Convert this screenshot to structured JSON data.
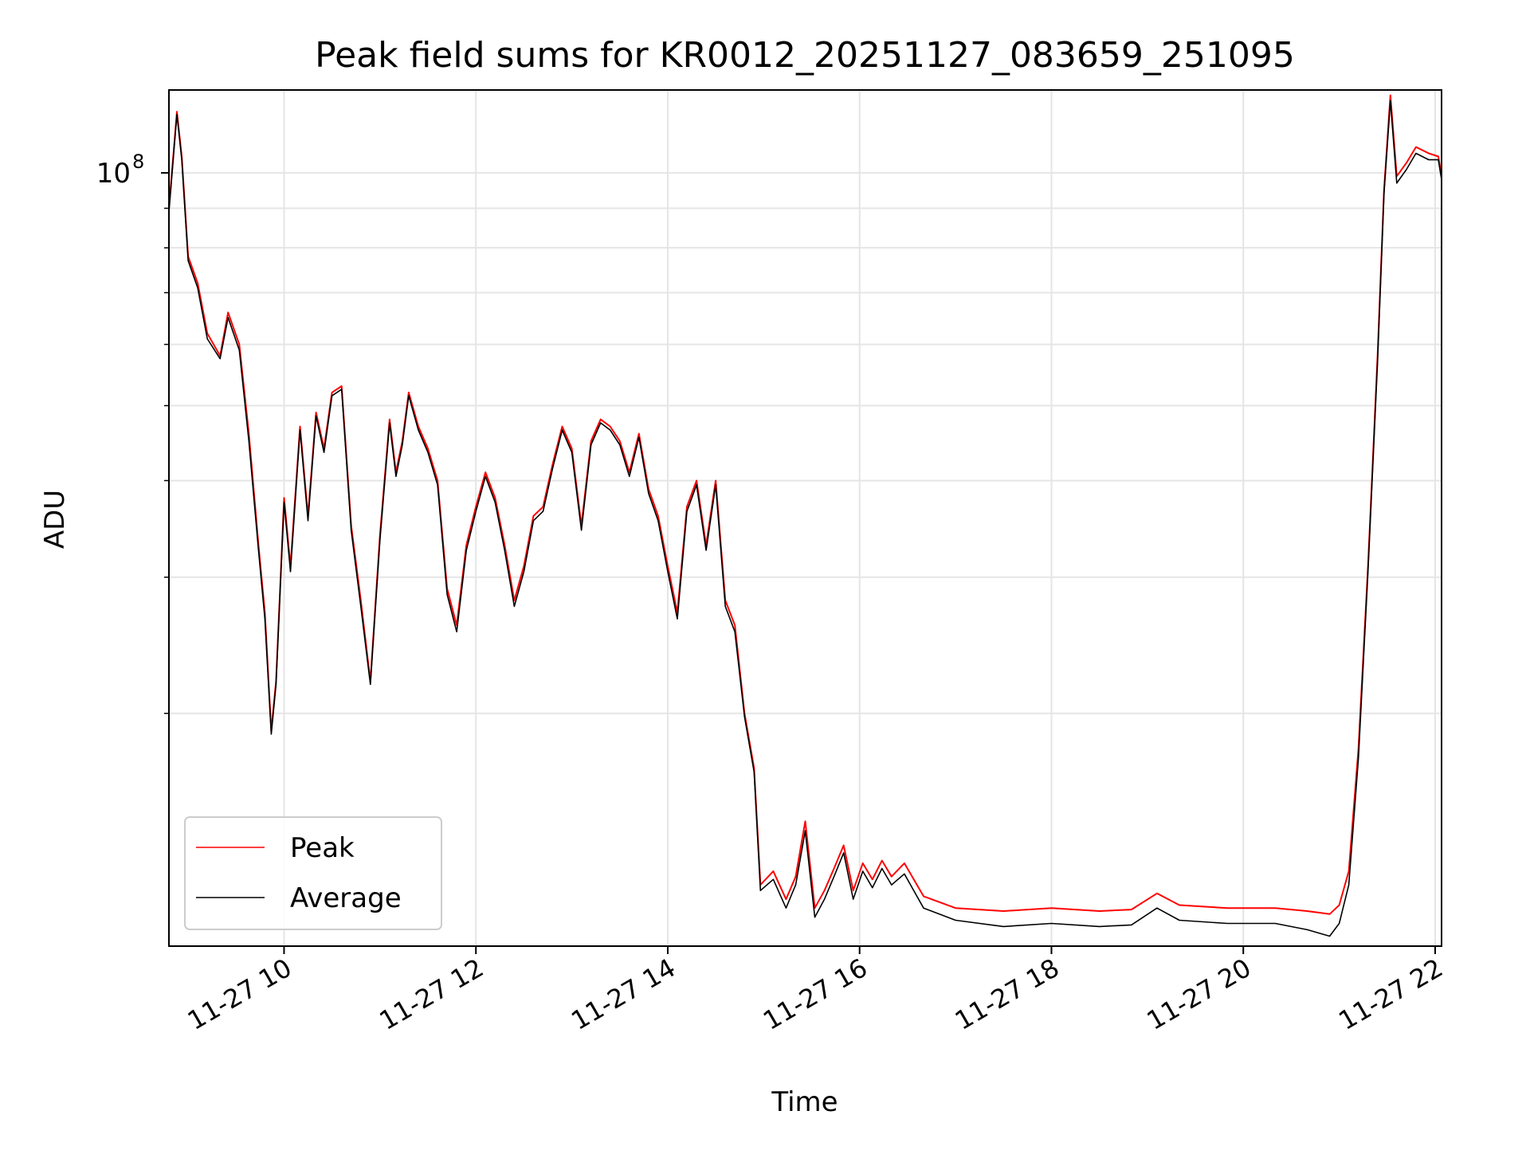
{
  "chart_data": {
    "type": "line",
    "title": "Peak field sums for KR0012_20251127_083659_251095",
    "xlabel": "Time",
    "ylabel": "ADU",
    "x_type": "datetime",
    "xlim": [
      "2025-11-27 08:48",
      "2025-11-27 22:04"
    ],
    "ylim": [
      10000000,
      128000000
    ],
    "yscale": "log",
    "grid": true,
    "legend_position": "lower-left",
    "x_ticks": [
      {
        "value": "2025-11-27 10:00",
        "label": "11-27 10"
      },
      {
        "value": "2025-11-27 12:00",
        "label": "11-27 12"
      },
      {
        "value": "2025-11-27 14:00",
        "label": "11-27 14"
      },
      {
        "value": "2025-11-27 16:00",
        "label": "11-27 16"
      },
      {
        "value": "2025-11-27 18:00",
        "label": "11-27 18"
      },
      {
        "value": "2025-11-27 20:00",
        "label": "11-27 20"
      },
      {
        "value": "2025-11-27 22:00",
        "label": "11-27 22"
      }
    ],
    "y_ticks_major": [
      {
        "value": 100000000,
        "label": "10",
        "exponent": "8"
      }
    ],
    "y_ticks_minor": [
      20000000,
      30000000,
      40000000,
      50000000,
      60000000,
      70000000,
      80000000,
      90000000
    ],
    "series": [
      {
        "name": "Peak",
        "color": "#ff0000",
        "points": [
          [
            "2025-11-27 08:48",
            90000000
          ],
          [
            "2025-11-27 08:53",
            120000000
          ],
          [
            "2025-11-27 08:56",
            105000000
          ],
          [
            "2025-11-27 09:00",
            78000000
          ],
          [
            "2025-11-27 09:06",
            72000000
          ],
          [
            "2025-11-27 09:12",
            62000000
          ],
          [
            "2025-11-27 09:20",
            58000000
          ],
          [
            "2025-11-27 09:25",
            66000000
          ],
          [
            "2025-11-27 09:32",
            60000000
          ],
          [
            "2025-11-27 09:38",
            46000000
          ],
          [
            "2025-11-27 09:44",
            33000000
          ],
          [
            "2025-11-27 09:48",
            27000000
          ],
          [
            "2025-11-27 09:52",
            19000000
          ],
          [
            "2025-11-27 09:55",
            22000000
          ],
          [
            "2025-11-27 10:00",
            38000000
          ],
          [
            "2025-11-27 10:04",
            31000000
          ],
          [
            "2025-11-27 10:10",
            47000000
          ],
          [
            "2025-11-27 10:15",
            36000000
          ],
          [
            "2025-11-27 10:20",
            49000000
          ],
          [
            "2025-11-27 10:25",
            44000000
          ],
          [
            "2025-11-27 10:30",
            52000000
          ],
          [
            "2025-11-27 10:36",
            53000000
          ],
          [
            "2025-11-27 10:42",
            35000000
          ],
          [
            "2025-11-27 10:48",
            28000000
          ],
          [
            "2025-11-27 10:54",
            22000000
          ],
          [
            "2025-11-27 11:00",
            34000000
          ],
          [
            "2025-11-27 11:06",
            48000000
          ],
          [
            "2025-11-27 11:10",
            41000000
          ],
          [
            "2025-11-27 11:14",
            45000000
          ],
          [
            "2025-11-27 11:18",
            52000000
          ],
          [
            "2025-11-27 11:24",
            47000000
          ],
          [
            "2025-11-27 11:30",
            44000000
          ],
          [
            "2025-11-27 11:36",
            40000000
          ],
          [
            "2025-11-27 11:42",
            29000000
          ],
          [
            "2025-11-27 11:48",
            26000000
          ],
          [
            "2025-11-27 11:54",
            33000000
          ],
          [
            "2025-11-27 12:00",
            37000000
          ],
          [
            "2025-11-27 12:06",
            41000000
          ],
          [
            "2025-11-27 12:12",
            38000000
          ],
          [
            "2025-11-27 12:18",
            33000000
          ],
          [
            "2025-11-27 12:24",
            28000000
          ],
          [
            "2025-11-27 12:30",
            31000000
          ],
          [
            "2025-11-27 12:36",
            36000000
          ],
          [
            "2025-11-27 12:42",
            37000000
          ],
          [
            "2025-11-27 12:48",
            42000000
          ],
          [
            "2025-11-27 12:54",
            47000000
          ],
          [
            "2025-11-27 13:00",
            44000000
          ],
          [
            "2025-11-27 13:06",
            35000000
          ],
          [
            "2025-11-27 13:12",
            45000000
          ],
          [
            "2025-11-27 13:18",
            48000000
          ],
          [
            "2025-11-27 13:24",
            47000000
          ],
          [
            "2025-11-27 13:30",
            45000000
          ],
          [
            "2025-11-27 13:36",
            41000000
          ],
          [
            "2025-11-27 13:42",
            46000000
          ],
          [
            "2025-11-27 13:48",
            39000000
          ],
          [
            "2025-11-27 13:54",
            36000000
          ],
          [
            "2025-11-27 14:00",
            31000000
          ],
          [
            "2025-11-27 14:06",
            27000000
          ],
          [
            "2025-11-27 14:12",
            37000000
          ],
          [
            "2025-11-27 14:18",
            40000000
          ],
          [
            "2025-11-27 14:24",
            33000000
          ],
          [
            "2025-11-27 14:30",
            40000000
          ],
          [
            "2025-11-27 14:36",
            28000000
          ],
          [
            "2025-11-27 14:42",
            26000000
          ],
          [
            "2025-11-27 14:48",
            20000000
          ],
          [
            "2025-11-27 14:54",
            17000000
          ],
          [
            "2025-11-27 14:58",
            12000000
          ],
          [
            "2025-11-27 15:06",
            12500000
          ],
          [
            "2025-11-27 15:14",
            11500000
          ],
          [
            "2025-11-27 15:20",
            12300000
          ],
          [
            "2025-11-27 15:26",
            14500000
          ],
          [
            "2025-11-27 15:32",
            11200000
          ],
          [
            "2025-11-27 15:38",
            11800000
          ],
          [
            "2025-11-27 15:44",
            12600000
          ],
          [
            "2025-11-27 15:50",
            13500000
          ],
          [
            "2025-11-27 15:56",
            11800000
          ],
          [
            "2025-11-27 16:02",
            12800000
          ],
          [
            "2025-11-27 16:08",
            12200000
          ],
          [
            "2025-11-27 16:14",
            12900000
          ],
          [
            "2025-11-27 16:20",
            12300000
          ],
          [
            "2025-11-27 16:28",
            12800000
          ],
          [
            "2025-11-27 16:40",
            11600000
          ],
          [
            "2025-11-27 17:00",
            11200000
          ],
          [
            "2025-11-27 17:30",
            11100000
          ],
          [
            "2025-11-27 18:00",
            11200000
          ],
          [
            "2025-11-27 18:30",
            11100000
          ],
          [
            "2025-11-27 18:50",
            11150000
          ],
          [
            "2025-11-27 19:06",
            11700000
          ],
          [
            "2025-11-27 19:20",
            11300000
          ],
          [
            "2025-11-27 19:50",
            11200000
          ],
          [
            "2025-11-27 20:20",
            11200000
          ],
          [
            "2025-11-27 20:40",
            11100000
          ],
          [
            "2025-11-27 20:54",
            11000000
          ],
          [
            "2025-11-27 21:00",
            11300000
          ],
          [
            "2025-11-27 21:06",
            12500000
          ],
          [
            "2025-11-27 21:12",
            18000000
          ],
          [
            "2025-11-27 21:18",
            31000000
          ],
          [
            "2025-11-27 21:24",
            58000000
          ],
          [
            "2025-11-27 21:28",
            95000000
          ],
          [
            "2025-11-27 21:32",
            126000000
          ],
          [
            "2025-11-27 21:36",
            99000000
          ],
          [
            "2025-11-27 21:42",
            103000000
          ],
          [
            "2025-11-27 21:48",
            108000000
          ],
          [
            "2025-11-27 21:56",
            106000000
          ],
          [
            "2025-11-27 22:02",
            105000000
          ],
          [
            "2025-11-27 22:04",
            99000000
          ]
        ]
      },
      {
        "name": "Average",
        "color": "#000000",
        "points": [
          [
            "2025-11-27 08:48",
            89000000
          ],
          [
            "2025-11-27 08:53",
            119000000
          ],
          [
            "2025-11-27 08:56",
            104000000
          ],
          [
            "2025-11-27 09:00",
            77000000
          ],
          [
            "2025-11-27 09:06",
            71000000
          ],
          [
            "2025-11-27 09:12",
            61000000
          ],
          [
            "2025-11-27 09:20",
            57500000
          ],
          [
            "2025-11-27 09:25",
            65000000
          ],
          [
            "2025-11-27 09:32",
            59000000
          ],
          [
            "2025-11-27 09:38",
            45000000
          ],
          [
            "2025-11-27 09:44",
            32500000
          ],
          [
            "2025-11-27 09:48",
            26500000
          ],
          [
            "2025-11-27 09:52",
            18800000
          ],
          [
            "2025-11-27 09:55",
            21800000
          ],
          [
            "2025-11-27 10:00",
            37500000
          ],
          [
            "2025-11-27 10:04",
            30500000
          ],
          [
            "2025-11-27 10:10",
            46500000
          ],
          [
            "2025-11-27 10:15",
            35500000
          ],
          [
            "2025-11-27 10:20",
            48500000
          ],
          [
            "2025-11-27 10:25",
            43500000
          ],
          [
            "2025-11-27 10:30",
            51500000
          ],
          [
            "2025-11-27 10:36",
            52500000
          ],
          [
            "2025-11-27 10:42",
            34500000
          ],
          [
            "2025-11-27 10:48",
            27500000
          ],
          [
            "2025-11-27 10:54",
            21800000
          ],
          [
            "2025-11-27 11:00",
            33500000
          ],
          [
            "2025-11-27 11:06",
            47500000
          ],
          [
            "2025-11-27 11:10",
            40500000
          ],
          [
            "2025-11-27 11:14",
            44500000
          ],
          [
            "2025-11-27 11:18",
            51500000
          ],
          [
            "2025-11-27 11:24",
            46500000
          ],
          [
            "2025-11-27 11:30",
            43500000
          ],
          [
            "2025-11-27 11:36",
            39500000
          ],
          [
            "2025-11-27 11:42",
            28500000
          ],
          [
            "2025-11-27 11:48",
            25500000
          ],
          [
            "2025-11-27 11:54",
            32500000
          ],
          [
            "2025-11-27 12:00",
            36500000
          ],
          [
            "2025-11-27 12:06",
            40500000
          ],
          [
            "2025-11-27 12:12",
            37500000
          ],
          [
            "2025-11-27 12:18",
            32500000
          ],
          [
            "2025-11-27 12:24",
            27500000
          ],
          [
            "2025-11-27 12:30",
            30500000
          ],
          [
            "2025-11-27 12:36",
            35500000
          ],
          [
            "2025-11-27 12:42",
            36500000
          ],
          [
            "2025-11-27 12:48",
            41500000
          ],
          [
            "2025-11-27 12:54",
            46500000
          ],
          [
            "2025-11-27 13:00",
            43500000
          ],
          [
            "2025-11-27 13:06",
            34500000
          ],
          [
            "2025-11-27 13:12",
            44500000
          ],
          [
            "2025-11-27 13:18",
            47500000
          ],
          [
            "2025-11-27 13:24",
            46500000
          ],
          [
            "2025-11-27 13:30",
            44500000
          ],
          [
            "2025-11-27 13:36",
            40500000
          ],
          [
            "2025-11-27 13:42",
            45500000
          ],
          [
            "2025-11-27 13:48",
            38500000
          ],
          [
            "2025-11-27 13:54",
            35500000
          ],
          [
            "2025-11-27 14:00",
            30500000
          ],
          [
            "2025-11-27 14:06",
            26500000
          ],
          [
            "2025-11-27 14:12",
            36500000
          ],
          [
            "2025-11-27 14:18",
            39500000
          ],
          [
            "2025-11-27 14:24",
            32500000
          ],
          [
            "2025-11-27 14:30",
            39500000
          ],
          [
            "2025-11-27 14:36",
            27500000
          ],
          [
            "2025-11-27 14:42",
            25500000
          ],
          [
            "2025-11-27 14:48",
            19800000
          ],
          [
            "2025-11-27 14:54",
            16800000
          ],
          [
            "2025-11-27 14:58",
            11800000
          ],
          [
            "2025-11-27 15:06",
            12200000
          ],
          [
            "2025-11-27 15:14",
            11200000
          ],
          [
            "2025-11-27 15:20",
            12000000
          ],
          [
            "2025-11-27 15:26",
            14100000
          ],
          [
            "2025-11-27 15:32",
            10900000
          ],
          [
            "2025-11-27 15:38",
            11500000
          ],
          [
            "2025-11-27 15:44",
            12300000
          ],
          [
            "2025-11-27 15:50",
            13200000
          ],
          [
            "2025-11-27 15:56",
            11500000
          ],
          [
            "2025-11-27 16:02",
            12500000
          ],
          [
            "2025-11-27 16:08",
            11900000
          ],
          [
            "2025-11-27 16:14",
            12600000
          ],
          [
            "2025-11-27 16:20",
            12000000
          ],
          [
            "2025-11-27 16:28",
            12400000
          ],
          [
            "2025-11-27 16:40",
            11200000
          ],
          [
            "2025-11-27 17:00",
            10800000
          ],
          [
            "2025-11-27 17:30",
            10600000
          ],
          [
            "2025-11-27 18:00",
            10700000
          ],
          [
            "2025-11-27 18:30",
            10600000
          ],
          [
            "2025-11-27 18:50",
            10650000
          ],
          [
            "2025-11-27 19:06",
            11200000
          ],
          [
            "2025-11-27 19:20",
            10800000
          ],
          [
            "2025-11-27 19:50",
            10700000
          ],
          [
            "2025-11-27 20:20",
            10700000
          ],
          [
            "2025-11-27 20:40",
            10500000
          ],
          [
            "2025-11-27 20:54",
            10300000
          ],
          [
            "2025-11-27 21:00",
            10700000
          ],
          [
            "2025-11-27 21:06",
            12000000
          ],
          [
            "2025-11-27 21:12",
            17500000
          ],
          [
            "2025-11-27 21:18",
            30500000
          ],
          [
            "2025-11-27 21:24",
            57000000
          ],
          [
            "2025-11-27 21:28",
            94000000
          ],
          [
            "2025-11-27 21:32",
            124000000
          ],
          [
            "2025-11-27 21:36",
            97000000
          ],
          [
            "2025-11-27 21:42",
            101000000
          ],
          [
            "2025-11-27 21:48",
            106000000
          ],
          [
            "2025-11-27 21:56",
            104000000
          ],
          [
            "2025-11-27 22:02",
            104000000
          ],
          [
            "2025-11-27 22:04",
            98000000
          ]
        ]
      }
    ]
  }
}
